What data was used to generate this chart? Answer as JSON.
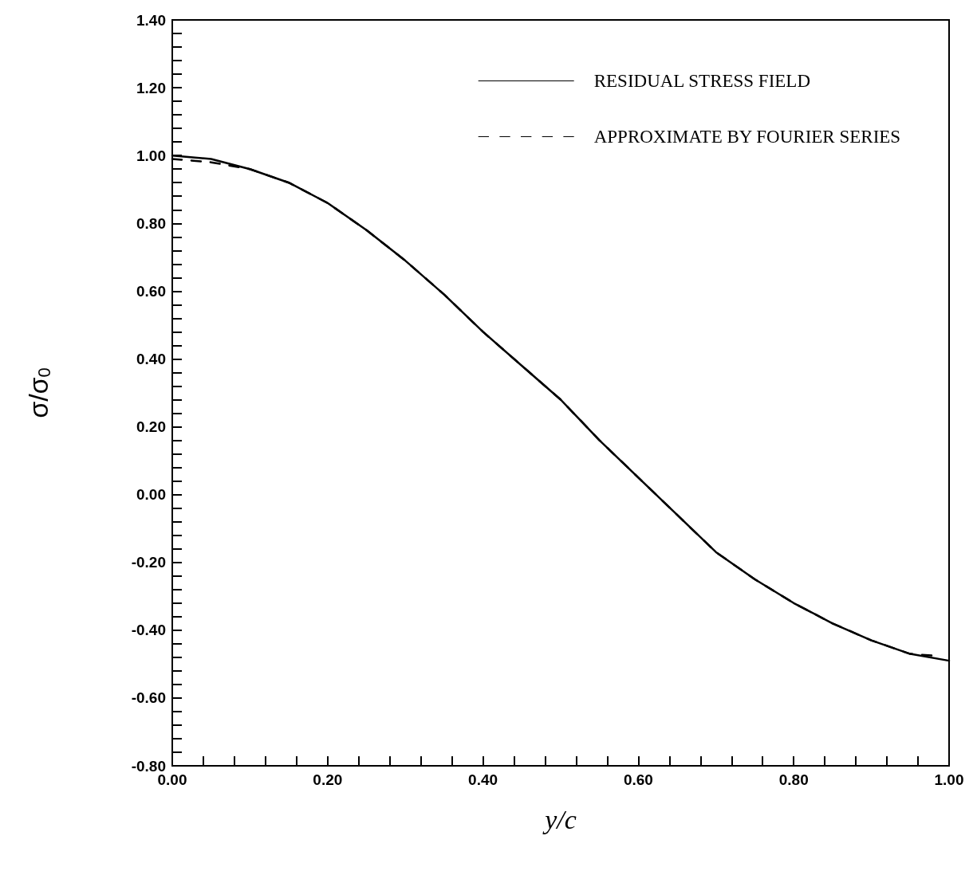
{
  "chart_data": {
    "type": "line",
    "xlabel": "y/c",
    "ylabel": "σ/σ$_{0}$",
    "x": [
      0,
      0.05,
      0.1,
      0.15,
      0.2,
      0.25,
      0.3,
      0.35,
      0.4,
      0.45,
      0.5,
      0.55,
      0.6,
      0.65,
      0.7,
      0.75,
      0.8,
      0.85,
      0.9,
      0.95,
      1.0
    ],
    "series": [
      {
        "name": "RESIDUAL STRESS FIELD",
        "color": "#000000",
        "line_style": "solid",
        "values": [
          1.0,
          0.99,
          0.96,
          0.92,
          0.86,
          0.78,
          0.69,
          0.59,
          0.48,
          0.38,
          0.28,
          0.16,
          0.05,
          -0.06,
          -0.17,
          -0.25,
          -0.32,
          -0.38,
          -0.43,
          -0.47,
          -0.49
        ]
      },
      {
        "name": "APPROXIMATE BY FOURIER SERIES",
        "color": "#000000",
        "line_style": "dashed",
        "x": [
          0,
          0.05,
          0.1,
          0.15,
          0.2,
          0.25,
          0.3,
          0.35,
          0.4,
          0.45,
          0.5,
          0.55,
          0.6,
          0.65,
          0.7,
          0.75,
          0.8,
          0.85,
          0.9,
          0.95,
          0.98
        ],
        "values": [
          0.99,
          0.98,
          0.96,
          0.92,
          0.86,
          0.78,
          0.69,
          0.59,
          0.48,
          0.38,
          0.28,
          0.16,
          0.05,
          -0.06,
          -0.17,
          -0.25,
          -0.32,
          -0.38,
          -0.43,
          -0.47,
          -0.475
        ]
      }
    ],
    "xlim": [
      0,
      1
    ],
    "ylim": [
      -0.8,
      1.4
    ],
    "xticks": [
      {
        "value": 0,
        "label": "0.00"
      },
      {
        "value": 0.04,
        "label": null
      },
      {
        "value": 0.08,
        "label": null
      },
      {
        "value": 0.12,
        "label": null
      },
      {
        "value": 0.16,
        "label": null
      },
      {
        "value": 0.2,
        "label": "0.20"
      },
      {
        "value": 0.24,
        "label": null
      },
      {
        "value": 0.28,
        "label": null
      },
      {
        "value": 0.32,
        "label": null
      },
      {
        "value": 0.36,
        "label": null
      },
      {
        "value": 0.4,
        "label": "0.40"
      },
      {
        "value": 0.44,
        "label": null
      },
      {
        "value": 0.48,
        "label": null
      },
      {
        "value": 0.52,
        "label": null
      },
      {
        "value": 0.56,
        "label": null
      },
      {
        "value": 0.6,
        "label": "0.60"
      },
      {
        "value": 0.64,
        "label": null
      },
      {
        "value": 0.68,
        "label": null
      },
      {
        "value": 0.72,
        "label": null
      },
      {
        "value": 0.76,
        "label": null
      },
      {
        "value": 0.8,
        "label": "0.80"
      },
      {
        "value": 0.84,
        "label": null
      },
      {
        "value": 0.88,
        "label": null
      },
      {
        "value": 0.92,
        "label": null
      },
      {
        "value": 0.96,
        "label": null
      },
      {
        "value": 1.0,
        "label": "1.00"
      }
    ],
    "yticks": [
      {
        "value": -0.8,
        "label": "-0.80"
      },
      {
        "value": -0.76,
        "label": null
      },
      {
        "value": -0.72,
        "label": null
      },
      {
        "value": -0.68,
        "label": null
      },
      {
        "value": -0.64,
        "label": null
      },
      {
        "value": -0.6,
        "label": "-0.60"
      },
      {
        "value": -0.56,
        "label": null
      },
      {
        "value": -0.52,
        "label": null
      },
      {
        "value": -0.48,
        "label": null
      },
      {
        "value": -0.44,
        "label": null
      },
      {
        "value": -0.4,
        "label": "-0.40"
      },
      {
        "value": -0.36,
        "label": null
      },
      {
        "value": -0.32,
        "label": null
      },
      {
        "value": -0.28,
        "label": null
      },
      {
        "value": -0.24,
        "label": null
      },
      {
        "value": -0.2,
        "label": "-0.20"
      },
      {
        "value": -0.16,
        "label": null
      },
      {
        "value": -0.12,
        "label": null
      },
      {
        "value": -0.08,
        "label": null
      },
      {
        "value": -0.04,
        "label": null
      },
      {
        "value": 0,
        "label": "0.00"
      },
      {
        "value": 0.04,
        "label": null
      },
      {
        "value": 0.08,
        "label": null
      },
      {
        "value": 0.12,
        "label": null
      },
      {
        "value": 0.16,
        "label": null
      },
      {
        "value": 0.2,
        "label": "0.20"
      },
      {
        "value": 0.24,
        "label": null
      },
      {
        "value": 0.28,
        "label": null
      },
      {
        "value": 0.32,
        "label": null
      },
      {
        "value": 0.36,
        "label": null
      },
      {
        "value": 0.4,
        "label": "0.40"
      },
      {
        "value": 0.44,
        "label": null
      },
      {
        "value": 0.48,
        "label": null
      },
      {
        "value": 0.52,
        "label": null
      },
      {
        "value": 0.56,
        "label": null
      },
      {
        "value": 0.6,
        "label": "0.60"
      },
      {
        "value": 0.64,
        "label": null
      },
      {
        "value": 0.68,
        "label": null
      },
      {
        "value": 0.72,
        "label": null
      },
      {
        "value": 0.76,
        "label": null
      },
      {
        "value": 0.8,
        "label": "0.80"
      },
      {
        "value": 0.84,
        "label": null
      },
      {
        "value": 0.88,
        "label": null
      },
      {
        "value": 0.92,
        "label": null
      },
      {
        "value": 0.96,
        "label": null
      },
      {
        "value": 1.0,
        "label": "1.00"
      },
      {
        "value": 1.04,
        "label": null
      },
      {
        "value": 1.08,
        "label": null
      },
      {
        "value": 1.12,
        "label": null
      },
      {
        "value": 1.16,
        "label": null
      },
      {
        "value": 1.2,
        "label": "1.20"
      },
      {
        "value": 1.24,
        "label": null
      },
      {
        "value": 1.28,
        "label": null
      },
      {
        "value": 1.32,
        "label": null
      },
      {
        "value": 1.36,
        "label": null
      },
      {
        "value": 1.4,
        "label": "1.40"
      }
    ],
    "grid": false,
    "legend": "top right",
    "marker": "none"
  }
}
